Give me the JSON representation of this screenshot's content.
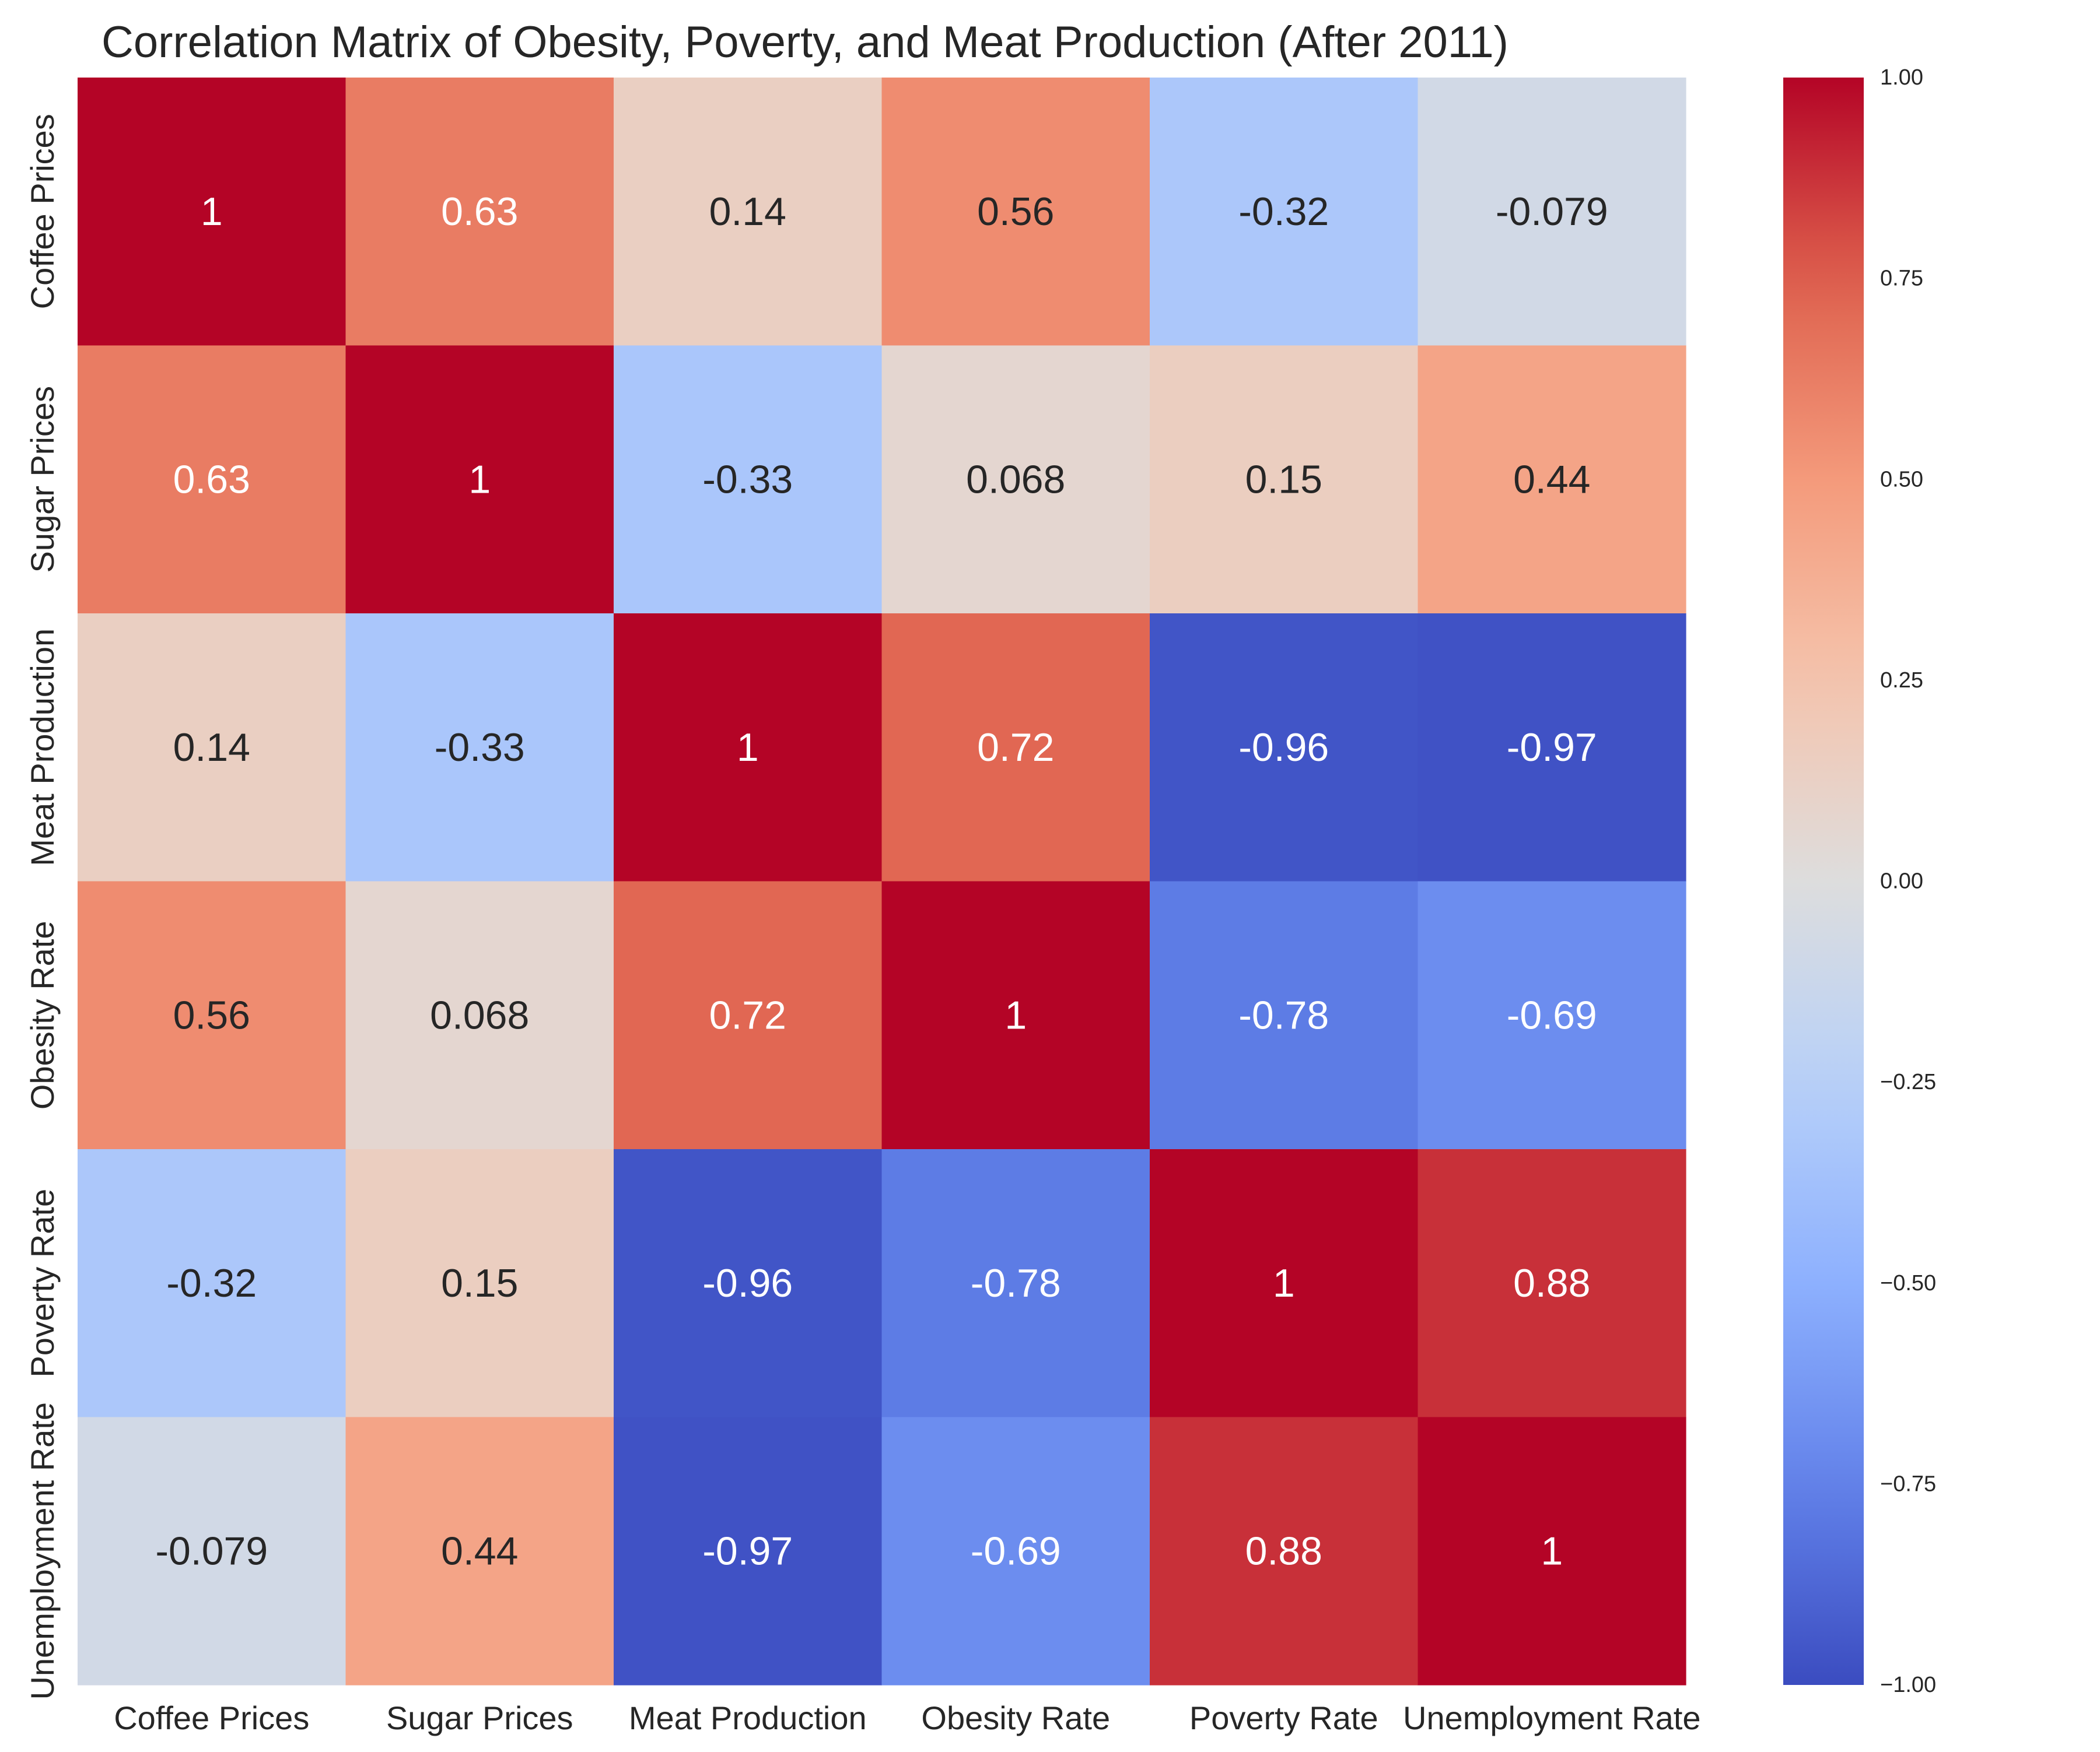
{
  "chart_data": {
    "type": "heatmap",
    "title": "Correlation Matrix of Obesity, Poverty, and Meat Production (After 2011)",
    "xlabel": "",
    "ylabel": "",
    "labels": [
      "Coffee Prices",
      "Sugar Prices",
      "Meat Production",
      "Obesity Rate",
      "Poverty Rate",
      "Unemployment Rate"
    ],
    "values": [
      [
        1,
        0.63,
        0.14,
        0.56,
        -0.32,
        -0.079
      ],
      [
        0.63,
        1,
        -0.33,
        0.068,
        0.15,
        0.44
      ],
      [
        0.14,
        -0.33,
        1,
        0.72,
        -0.96,
        -0.97
      ],
      [
        0.56,
        0.068,
        0.72,
        1,
        -0.78,
        -0.69
      ],
      [
        -0.32,
        0.15,
        -0.96,
        -0.78,
        1,
        0.88
      ],
      [
        -0.079,
        0.44,
        -0.97,
        -0.69,
        0.88,
        1
      ]
    ],
    "annotations": [
      [
        "1",
        "0.63",
        "0.14",
        "0.56",
        "-0.32",
        "-0.079"
      ],
      [
        "0.63",
        "1",
        "-0.33",
        "0.068",
        "0.15",
        "0.44"
      ],
      [
        "0.14",
        "-0.33",
        "1",
        "0.72",
        "-0.96",
        "-0.97"
      ],
      [
        "0.56",
        "0.068",
        "0.72",
        "1",
        "-0.78",
        "-0.69"
      ],
      [
        "-0.32",
        "0.15",
        "-0.96",
        "-0.78",
        "1",
        "0.88"
      ],
      [
        "-0.079",
        "0.44",
        "-0.97",
        "-0.69",
        "0.88",
        "1"
      ]
    ],
    "colorscale": "coolwarm",
    "vmin": -1,
    "vmax": 1,
    "colorbar_ticks": [
      "1.00",
      "0.75",
      "0.50",
      "0.25",
      "0.00",
      "−0.25",
      "−0.50",
      "−0.75",
      "−1.00"
    ],
    "colorbar_tick_values": [
      1.0,
      0.75,
      0.5,
      0.25,
      0.0,
      -0.25,
      -0.5,
      -0.75,
      -1.0
    ],
    "colorbar_placement": "right",
    "grid": false
  }
}
